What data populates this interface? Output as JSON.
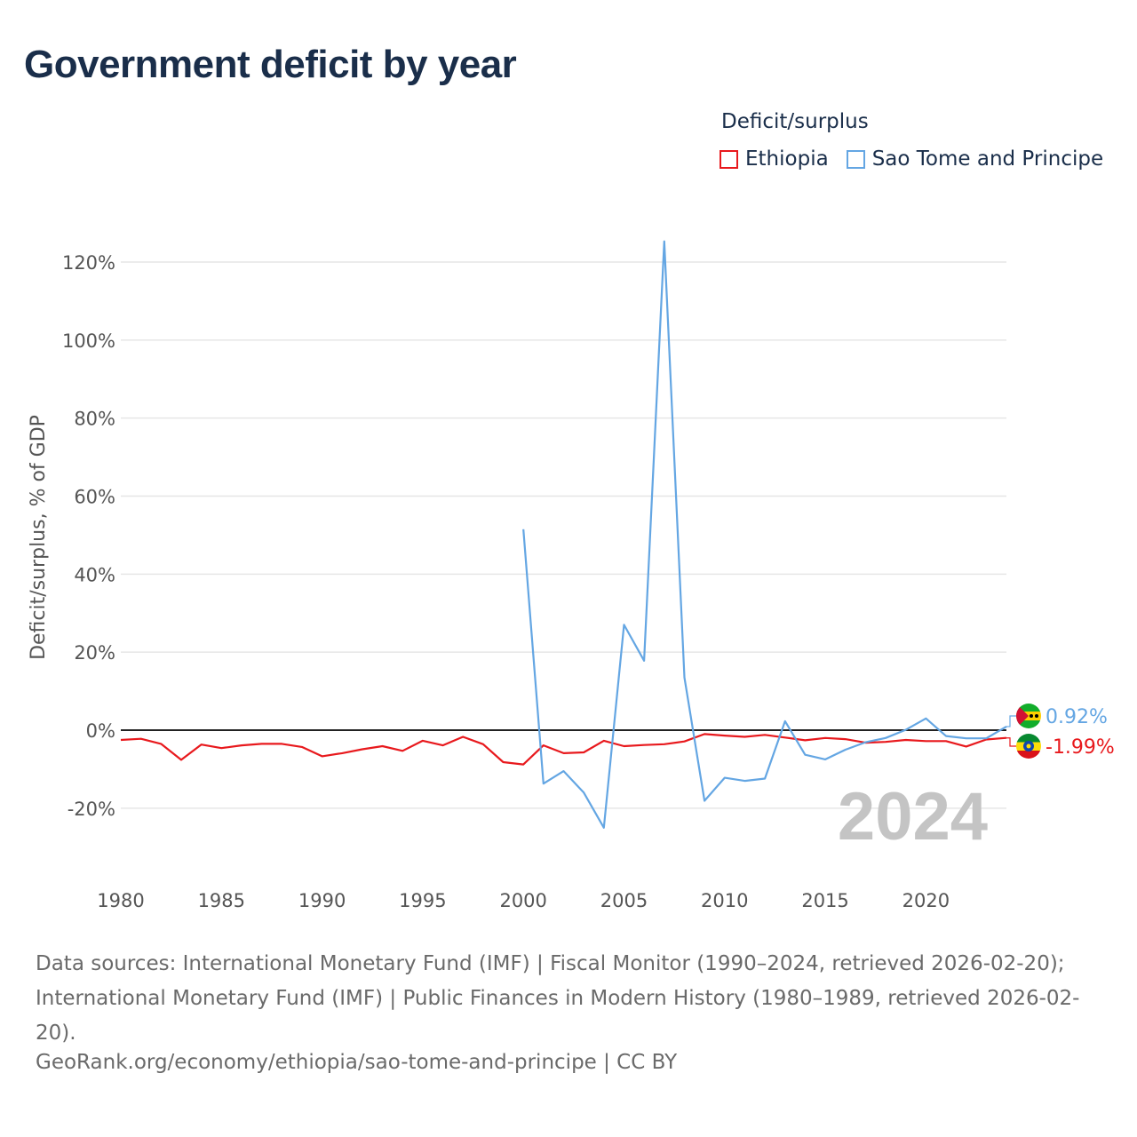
{
  "title": "Government deficit by year",
  "legend": {
    "title": "Deficit/surplus",
    "items": [
      {
        "label": "Ethiopia",
        "color": "#e8191d"
      },
      {
        "label": "Sao Tome and Principe",
        "color": "#64a6e3"
      }
    ]
  },
  "chart_data": {
    "type": "line",
    "title": "Government deficit by year",
    "xlabel": "",
    "ylabel": "Deficit/surplus, % of GDP",
    "xlim": [
      1980,
      2024
    ],
    "ylim": [
      -30,
      126
    ],
    "x_ticks": [
      1980,
      1985,
      1990,
      1995,
      2000,
      2005,
      2010,
      2015,
      2020
    ],
    "y_ticks": [
      -20,
      0,
      20,
      40,
      60,
      80,
      100,
      120
    ],
    "y_tick_labels": [
      "-20%",
      "0%",
      "20%",
      "40%",
      "60%",
      "80%",
      "100%",
      "120%"
    ],
    "grid": true,
    "zero_line": true,
    "year_watermark": "2024",
    "series": [
      {
        "name": "Ethiopia",
        "color": "#e8191d",
        "x": [
          1980,
          1981,
          1982,
          1983,
          1984,
          1985,
          1986,
          1987,
          1988,
          1989,
          1990,
          1991,
          1992,
          1993,
          1994,
          1995,
          1996,
          1997,
          1998,
          1999,
          2000,
          2001,
          2002,
          2003,
          2004,
          2005,
          2006,
          2007,
          2008,
          2009,
          2010,
          2011,
          2012,
          2013,
          2014,
          2015,
          2016,
          2017,
          2018,
          2019,
          2020,
          2021,
          2022,
          2023,
          2024
        ],
        "values": [
          -2.5,
          -2.2,
          -3.5,
          -7.6,
          -3.7,
          -4.6,
          -3.9,
          -3.5,
          -3.5,
          -4.3,
          -6.7,
          -5.9,
          -4.9,
          -4.1,
          -5.3,
          -2.7,
          -3.9,
          -1.7,
          -3.6,
          -8.2,
          -8.8,
          -3.9,
          -5.9,
          -5.7,
          -2.7,
          -4.1,
          -3.8,
          -3.6,
          -2.9,
          -1.0,
          -1.4,
          -1.7,
          -1.2,
          -1.9,
          -2.6,
          -2.0,
          -2.3,
          -3.2,
          -3.0,
          -2.5,
          -2.8,
          -2.8,
          -4.2,
          -2.4,
          -1.99
        ],
        "end_label": "-1.99%"
      },
      {
        "name": "Sao Tome and Principe",
        "color": "#64a6e3",
        "x": [
          2000,
          2001,
          2002,
          2003,
          2004,
          2005,
          2006,
          2007,
          2008,
          2009,
          2010,
          2011,
          2012,
          2013,
          2014,
          2015,
          2016,
          2017,
          2018,
          2019,
          2020,
          2021,
          2022,
          2023,
          2024
        ],
        "values": [
          51.5,
          -13.7,
          -10.5,
          -16.0,
          -25.0,
          27.0,
          17.8,
          125.3,
          13.5,
          -18.1,
          -12.2,
          -13.0,
          -12.4,
          2.3,
          -6.3,
          -7.5,
          -5.0,
          -3.1,
          -2.0,
          0.1,
          3.0,
          -1.5,
          -2.1,
          -2.1,
          0.92
        ],
        "end_label": "0.92%"
      }
    ]
  },
  "footer": {
    "sources": "Data sources: International Monetary Fund (IMF) | Fiscal Monitor (1990–2024, retrieved 2026-02-20); International Monetary Fund (IMF) | Public Finances in Modern History (1980–1989, retrieved 2026-02-20).",
    "credit": "GeoRank.org/economy/ethiopia/sao-tome-and-principe | CC BY"
  },
  "flags": [
    "sao-tome-and-principe-flag",
    "ethiopia-flag"
  ]
}
